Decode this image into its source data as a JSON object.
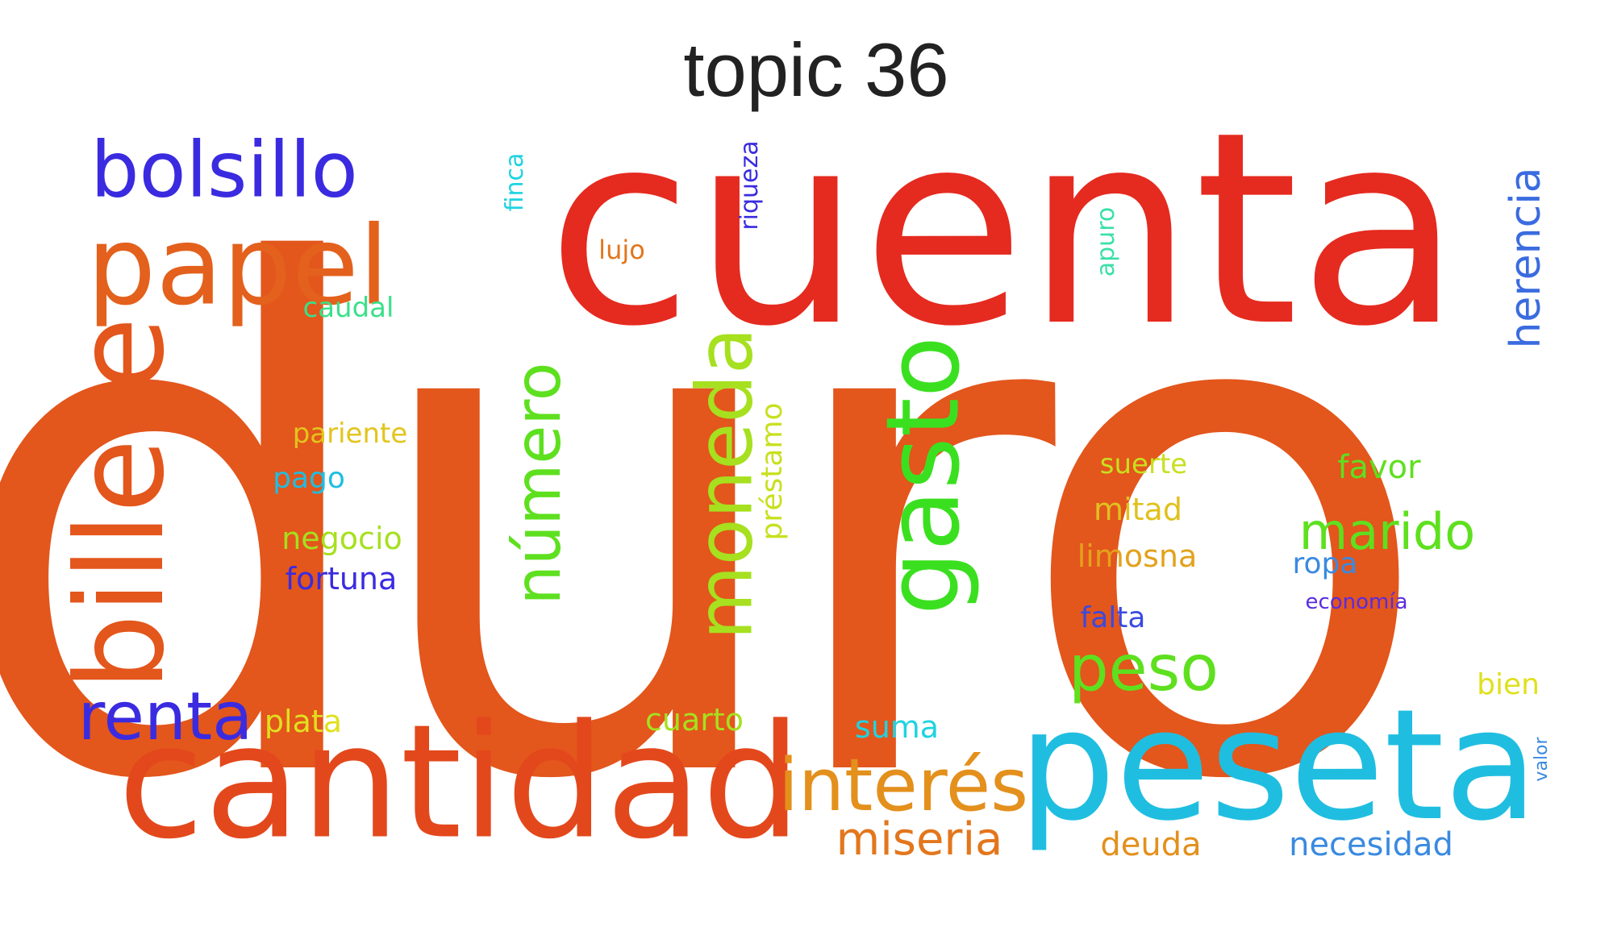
{
  "title": "topic 36",
  "words": [
    {
      "text": "duro",
      "color": "#e3561c",
      "size": 860,
      "rotate": false
    },
    {
      "text": "cuenta",
      "color": "#e52a1f",
      "size": 330,
      "rotate": false
    },
    {
      "text": "cantidad",
      "color": "#e3481c",
      "size": 195,
      "rotate": false
    },
    {
      "text": "peseta",
      "color": "#1fbee0",
      "size": 190,
      "rotate": false
    },
    {
      "text": "billete",
      "color": "#e3561c",
      "size": 150,
      "rotate": true
    },
    {
      "text": "papel",
      "color": "#e3611c",
      "size": 135,
      "rotate": false
    },
    {
      "text": "gasto",
      "color": "#3ae01f",
      "size": 125,
      "rotate": true
    },
    {
      "text": "moneda",
      "color": "#a6e01f",
      "size": 95,
      "rotate": true
    },
    {
      "text": "bolsillo",
      "color": "#3a2be0",
      "size": 95,
      "rotate": false
    },
    {
      "text": "interés",
      "color": "#e3901c",
      "size": 90,
      "rotate": false
    },
    {
      "text": "número",
      "color": "#5ee01f",
      "size": 78,
      "rotate": true
    },
    {
      "text": "renta",
      "color": "#3a2be0",
      "size": 82,
      "rotate": false
    },
    {
      "text": "peso",
      "color": "#5ee01f",
      "size": 78,
      "rotate": false
    },
    {
      "text": "marido",
      "color": "#5ee01f",
      "size": 62,
      "rotate": false
    },
    {
      "text": "miseria",
      "color": "#e3761c",
      "size": 56,
      "rotate": false
    },
    {
      "text": "herencia",
      "color": "#3a6be0",
      "size": 52,
      "rotate": true
    },
    {
      "text": "préstamo",
      "color": "#c8e01f",
      "size": 36,
      "rotate": true
    },
    {
      "text": "necesidad",
      "color": "#3a8ae0",
      "size": 40,
      "rotate": false
    },
    {
      "text": "deuda",
      "color": "#e3901c",
      "size": 40,
      "rotate": false
    },
    {
      "text": "limosna",
      "color": "#e3a21c",
      "size": 38,
      "rotate": false
    },
    {
      "text": "mitad",
      "color": "#e0c11f",
      "size": 38,
      "rotate": false
    },
    {
      "text": "suerte",
      "color": "#c8e01f",
      "size": 34,
      "rotate": false
    },
    {
      "text": "favor",
      "color": "#5ee01f",
      "size": 40,
      "rotate": false
    },
    {
      "text": "ropa",
      "color": "#3a8ae0",
      "size": 36,
      "rotate": false
    },
    {
      "text": "economía",
      "color": "#5a2be0",
      "size": 26,
      "rotate": false
    },
    {
      "text": "falta",
      "color": "#3a4ae0",
      "size": 36,
      "rotate": false
    },
    {
      "text": "bien",
      "color": "#e0e01f",
      "size": 36,
      "rotate": false
    },
    {
      "text": "valor",
      "color": "#3a8ae0",
      "size": 22,
      "rotate": true
    },
    {
      "text": "suma",
      "color": "#1fd3e0",
      "size": 38,
      "rotate": false
    },
    {
      "text": "cuarto",
      "color": "#a6e01f",
      "size": 38,
      "rotate": false
    },
    {
      "text": "plata",
      "color": "#e0e01f",
      "size": 38,
      "rotate": false
    },
    {
      "text": "pariente",
      "color": "#e3c41c",
      "size": 34,
      "rotate": false
    },
    {
      "text": "pago",
      "color": "#1fbee0",
      "size": 36,
      "rotate": false
    },
    {
      "text": "negocio",
      "color": "#a6e01f",
      "size": 38,
      "rotate": false
    },
    {
      "text": "fortuna",
      "color": "#3a2be0",
      "size": 38,
      "rotate": false
    },
    {
      "text": "caudal",
      "color": "#3ae08a",
      "size": 34,
      "rotate": false
    },
    {
      "text": "lujo",
      "color": "#e3761c",
      "size": 32,
      "rotate": false
    },
    {
      "text": "finca",
      "color": "#1fd3e0",
      "size": 30,
      "rotate": true
    },
    {
      "text": "riqueza",
      "color": "#3a2be0",
      "size": 30,
      "rotate": true
    },
    {
      "text": "apuro",
      "color": "#3ae0a6",
      "size": 30,
      "rotate": true
    }
  ]
}
